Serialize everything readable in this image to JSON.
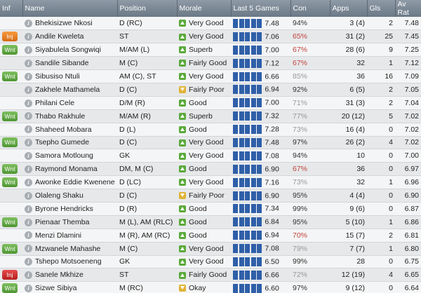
{
  "headers": {
    "inf": "Inf",
    "name": "Name",
    "position": "Position",
    "morale": "Morale",
    "last5": "Last 5 Games",
    "con": "Con",
    "apps": "Apps",
    "gls": "Gls",
    "avrat": "Av Rat"
  },
  "players": [
    {
      "inf": "",
      "name": "Bhekisizwe Nkosi",
      "position": "D (RC)",
      "morale": "Very Good",
      "mood": "up",
      "last5": "7.48",
      "con": "94%",
      "con_class": "con-dark",
      "apps": "3 (4)",
      "gls": "2",
      "avrat": "7.48"
    },
    {
      "inf": "Inj",
      "inf_class": "inf-inj",
      "name": "Andile Kweleta",
      "position": "ST",
      "morale": "Very Good",
      "mood": "up",
      "last5": "7.06",
      "con": "65%",
      "con_class": "con-red",
      "apps": "31 (2)",
      "gls": "25",
      "avrat": "7.45"
    },
    {
      "inf": "Wnt",
      "inf_class": "inf-wnt",
      "name": "Siyabulela Songwiqi",
      "position": "M/AM (L)",
      "morale": "Superb",
      "mood": "up",
      "last5": "7.00",
      "con": "67%",
      "con_class": "con-red",
      "apps": "28 (6)",
      "gls": "9",
      "avrat": "7.25"
    },
    {
      "inf": "",
      "name": "Sandile Sibande",
      "position": "M (C)",
      "morale": "Fairly Good",
      "mood": "up",
      "last5": "7.12",
      "con": "67%",
      "con_class": "con-red",
      "apps": "32",
      "gls": "1",
      "avrat": "7.12"
    },
    {
      "inf": "Wnt",
      "inf_class": "inf-wnt",
      "name": "Sibusiso Ntuli",
      "position": "AM (C), ST",
      "morale": "Very Good",
      "mood": "up",
      "last5": "6.66",
      "con": "85%",
      "con_class": "con-grey",
      "apps": "36",
      "gls": "16",
      "avrat": "7.09"
    },
    {
      "inf": "",
      "name": "Zakhele Mathamela",
      "position": "D (C)",
      "morale": "Fairly Poor",
      "mood": "down",
      "last5": "6.94",
      "con": "92%",
      "con_class": "con-dark",
      "apps": "6 (5)",
      "gls": "2",
      "avrat": "7.05"
    },
    {
      "inf": "",
      "name": "Philani Cele",
      "position": "D/M (R)",
      "morale": "Good",
      "mood": "up",
      "last5": "7.00",
      "con": "71%",
      "con_class": "con-grey",
      "apps": "31 (3)",
      "gls": "2",
      "avrat": "7.04"
    },
    {
      "inf": "Wnt",
      "inf_class": "inf-wnt",
      "name": "Thabo Rakhule",
      "position": "M/AM (R)",
      "morale": "Superb",
      "mood": "up",
      "last5": "7.32",
      "con": "77%",
      "con_class": "con-grey",
      "apps": "20 (12)",
      "gls": "5",
      "avrat": "7.02"
    },
    {
      "inf": "",
      "name": "Shaheed Mobara",
      "position": "D (L)",
      "morale": "Good",
      "mood": "up",
      "last5": "7.28",
      "con": "73%",
      "con_class": "con-grey",
      "apps": "16 (4)",
      "gls": "0",
      "avrat": "7.02"
    },
    {
      "inf": "Wnt",
      "inf_class": "inf-wnt",
      "name": "Tsepho Gumede",
      "position": "D (C)",
      "morale": "Very Good",
      "mood": "up",
      "last5": "7.48",
      "con": "97%",
      "con_class": "con-dark",
      "apps": "26 (2)",
      "gls": "4",
      "avrat": "7.02"
    },
    {
      "inf": "",
      "name": "Samora Motloung",
      "position": "GK",
      "morale": "Very Good",
      "mood": "up",
      "last5": "7.08",
      "con": "94%",
      "con_class": "con-dark",
      "apps": "10",
      "gls": "0",
      "avrat": "7.00"
    },
    {
      "inf": "Wnt",
      "inf_class": "inf-wnt",
      "name": "Raymond Monama",
      "position": "DM, M (C)",
      "morale": "Good",
      "mood": "up",
      "last5": "6.90",
      "con": "67%",
      "con_class": "con-red",
      "apps": "36",
      "gls": "0",
      "avrat": "6.97"
    },
    {
      "inf": "Wnt",
      "inf_class": "inf-wnt",
      "name": "Awonke Eddie Kwenene",
      "position": "D (LC)",
      "morale": "Very Good",
      "mood": "up",
      "last5": "7.16",
      "con": "73%",
      "con_class": "con-grey",
      "apps": "32",
      "gls": "1",
      "avrat": "6.96"
    },
    {
      "inf": "",
      "name": "Olaleng Shaku",
      "position": "D (C)",
      "morale": "Fairly Poor",
      "mood": "down",
      "last5": "6.90",
      "con": "95%",
      "con_class": "con-dark",
      "apps": "4 (4)",
      "gls": "0",
      "avrat": "6.90"
    },
    {
      "inf": "",
      "name": "Byrone Hendricks",
      "position": "D (R)",
      "morale": "Good",
      "mood": "up",
      "last5": "7.34",
      "con": "99%",
      "con_class": "con-dark",
      "apps": "9 (6)",
      "gls": "0",
      "avrat": "6.87"
    },
    {
      "inf": "Wnt",
      "inf_class": "inf-wnt",
      "name": "Pienaar Themba",
      "position": "M (L), AM (RLC)",
      "morale": "Good",
      "mood": "up",
      "last5": "6.84",
      "con": "95%",
      "con_class": "con-dark",
      "apps": "5 (10)",
      "gls": "1",
      "avrat": "6.86"
    },
    {
      "inf": "",
      "name": "Menzi Dlamini",
      "position": "M (R), AM (RC)",
      "morale": "Good",
      "mood": "up",
      "last5": "6.94",
      "con": "70%",
      "con_class": "con-red",
      "apps": "15 (7)",
      "gls": "2",
      "avrat": "6.81"
    },
    {
      "inf": "Wnt",
      "inf_class": "inf-wnt",
      "name": "Mzwanele Mahashe",
      "position": "M (C)",
      "morale": "Very Good",
      "mood": "up",
      "last5": "7.08",
      "con": "79%",
      "con_class": "con-grey",
      "apps": "7 (7)",
      "gls": "1",
      "avrat": "6.80"
    },
    {
      "inf": "",
      "name": "Tshepo Motsoeneng",
      "position": "GK",
      "morale": "Very Good",
      "mood": "up",
      "last5": "6.50",
      "con": "99%",
      "con_class": "con-dark",
      "apps": "28",
      "gls": "0",
      "avrat": "6.75"
    },
    {
      "inf": "Inj",
      "inf_class": "inf-inj red",
      "name": "Sanele Mkhize",
      "position": "ST",
      "morale": "Fairly Good",
      "mood": "up",
      "last5": "6.66",
      "con": "72%",
      "con_class": "con-grey",
      "apps": "12 (19)",
      "gls": "4",
      "avrat": "6.65"
    },
    {
      "inf": "Wnt",
      "inf_class": "inf-wnt",
      "name": "Sizwe Sibiya",
      "position": "M (RC)",
      "morale": "Okay",
      "mood": "down",
      "last5": "6.60",
      "con": "97%",
      "con_class": "con-dark",
      "apps": "9 (12)",
      "gls": "0",
      "avrat": "6.64"
    }
  ]
}
